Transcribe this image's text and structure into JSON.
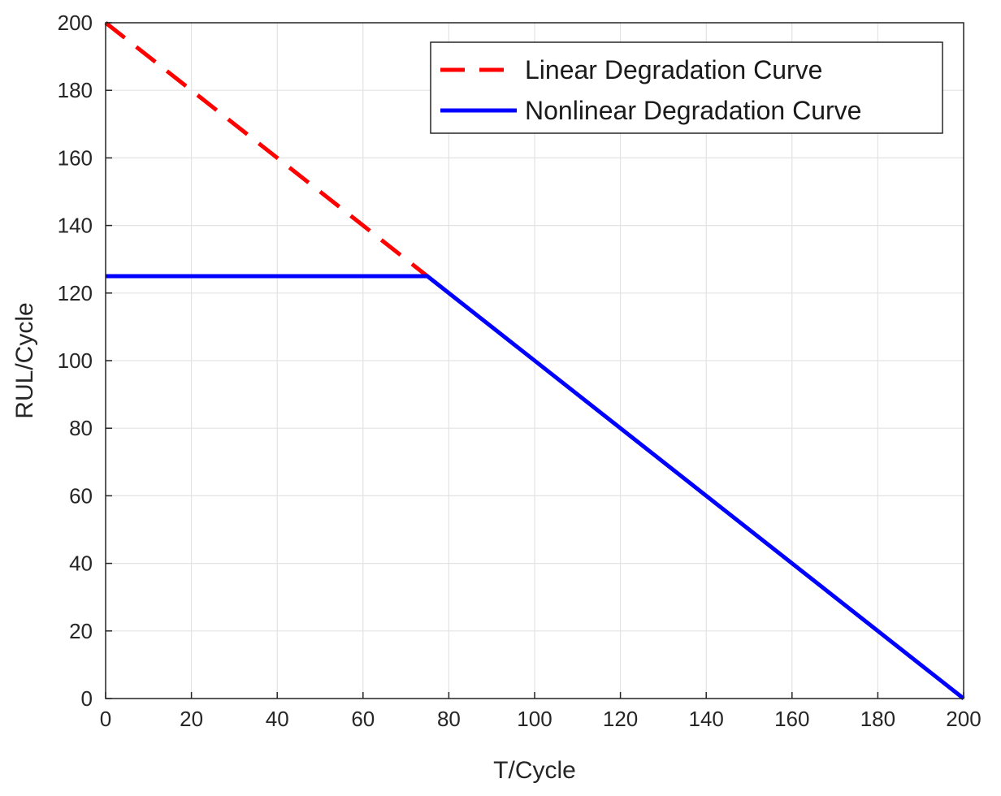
{
  "chart_data": {
    "type": "line",
    "title": "",
    "xlabel": "T/Cycle",
    "ylabel": "RUL/Cycle",
    "xlim": [
      0,
      200
    ],
    "ylim": [
      0,
      200
    ],
    "xticks": [
      0,
      20,
      40,
      60,
      80,
      100,
      120,
      140,
      160,
      180,
      200
    ],
    "yticks": [
      0,
      20,
      40,
      60,
      80,
      100,
      120,
      140,
      160,
      180,
      200
    ],
    "grid": true,
    "legend": {
      "placement": "top-right"
    },
    "series": [
      {
        "name": "Linear Degradation Curve",
        "color": "#ff0000",
        "style": "dashed",
        "x": [
          0,
          75
        ],
        "y": [
          200,
          125
        ]
      },
      {
        "name": "Nonlinear Degradation Curve",
        "color": "#0000ff",
        "style": "solid",
        "x": [
          0,
          75,
          200
        ],
        "y": [
          125,
          125,
          0
        ]
      }
    ]
  }
}
